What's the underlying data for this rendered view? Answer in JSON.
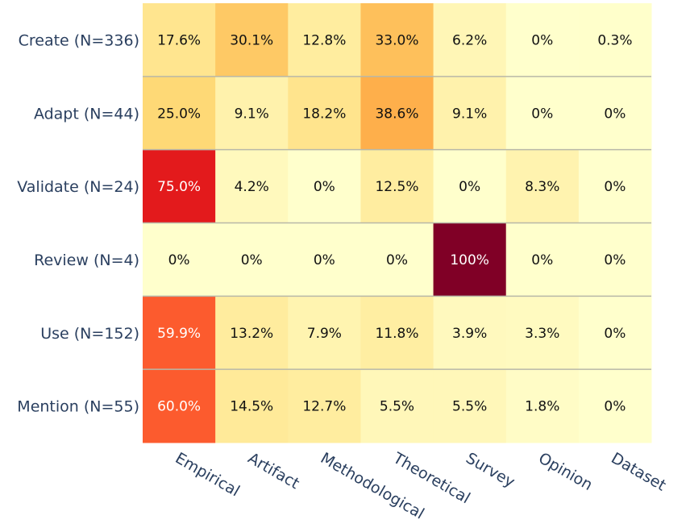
{
  "chart_data": {
    "type": "heatmap",
    "title": "",
    "xlabel": "",
    "ylabel": "",
    "colorscale": "YlOrRd",
    "zlim": [
      0,
      100
    ],
    "x": [
      "Empirical",
      "Artifact",
      "Methodological",
      "Theoretical",
      "Survey",
      "Opinion",
      "Dataset"
    ],
    "y": [
      "Create (N=336)",
      "Adapt (N=44)",
      "Validate (N=24)",
      "Review (N=4)",
      "Use (N=152)",
      "Mention (N=55)"
    ],
    "z": [
      [
        17.6,
        30.1,
        12.8,
        33.0,
        6.2,
        0,
        0.3
      ],
      [
        25.0,
        9.1,
        18.2,
        38.6,
        9.1,
        0,
        0
      ],
      [
        75.0,
        4.2,
        0,
        12.5,
        0,
        8.3,
        0
      ],
      [
        0,
        0,
        0,
        0,
        100,
        0,
        0
      ],
      [
        59.9,
        13.2,
        7.9,
        11.8,
        3.9,
        3.3,
        0
      ],
      [
        60.0,
        14.5,
        12.7,
        5.5,
        5.5,
        1.8,
        0
      ]
    ],
    "text": [
      [
        "17.6%",
        "30.1%",
        "12.8%",
        "33.0%",
        "6.2%",
        "0%",
        "0.3%"
      ],
      [
        "25.0%",
        "9.1%",
        "18.2%",
        "38.6%",
        "9.1%",
        "0%",
        "0%"
      ],
      [
        "75.0%",
        "4.2%",
        "0%",
        "12.5%",
        "0%",
        "8.3%",
        "0%"
      ],
      [
        "0%",
        "0%",
        "0%",
        "0%",
        "100%",
        "0%",
        "0%"
      ],
      [
        "59.9%",
        "13.2%",
        "7.9%",
        "11.8%",
        "3.9%",
        "3.3%",
        "0%"
      ],
      [
        "60.0%",
        "14.5%",
        "12.7%",
        "5.5%",
        "5.5%",
        "1.8%",
        "0%"
      ]
    ],
    "colors": {
      "tick_text": "#2a3f5f",
      "row_divider": "#b8b8a8",
      "text_dark": "#111111",
      "text_light": "#ffffff"
    }
  }
}
